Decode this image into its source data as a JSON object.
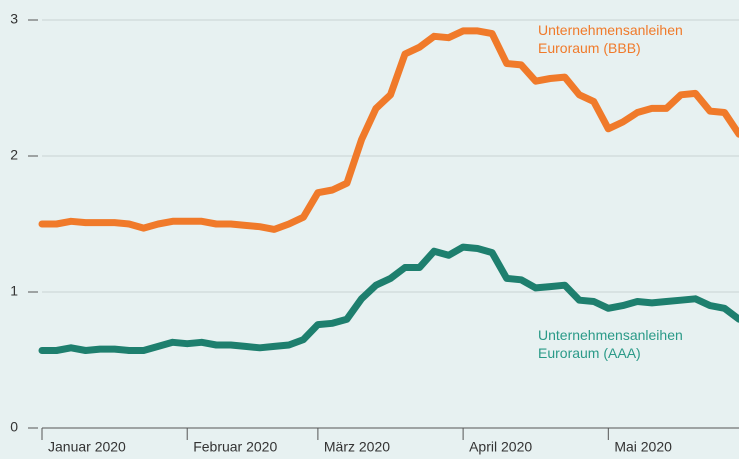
{
  "chart_data": {
    "type": "line",
    "categories": [
      "Januar 2020",
      null,
      null,
      null,
      null,
      null,
      null,
      null,
      null,
      null,
      "Februar 2020",
      null,
      null,
      null,
      null,
      null,
      null,
      null,
      null,
      "März 2020",
      null,
      null,
      null,
      null,
      null,
      null,
      null,
      null,
      null,
      "April 2020",
      null,
      null,
      null,
      null,
      null,
      null,
      null,
      null,
      null,
      "Mai 2020",
      null,
      null,
      null,
      null,
      null,
      null,
      null,
      null,
      null
    ],
    "series": [
      {
        "name": "Unternehmensanleihen Euroraum (BBB)",
        "color": "#f07a2a",
        "values": [
          1.5,
          1.5,
          1.52,
          1.51,
          1.51,
          1.51,
          1.5,
          1.47,
          1.5,
          1.52,
          1.52,
          1.52,
          1.5,
          1.5,
          1.49,
          1.48,
          1.46,
          1.5,
          1.55,
          1.73,
          1.75,
          1.8,
          2.12,
          2.35,
          2.45,
          2.75,
          2.8,
          2.88,
          2.87,
          2.92,
          2.92,
          2.9,
          2.68,
          2.67,
          2.55,
          2.57,
          2.58,
          2.45,
          2.4,
          2.2,
          2.25,
          2.32,
          2.35,
          2.35,
          2.45,
          2.46,
          2.33,
          2.32,
          2.16
        ]
      },
      {
        "name": "Unternehmensanleihen Euroraum (AAA)",
        "color": "#1e7f6e",
        "values": [
          0.57,
          0.57,
          0.59,
          0.57,
          0.58,
          0.58,
          0.57,
          0.57,
          0.6,
          0.63,
          0.62,
          0.63,
          0.61,
          0.61,
          0.6,
          0.59,
          0.6,
          0.61,
          0.65,
          0.76,
          0.77,
          0.8,
          0.95,
          1.05,
          1.1,
          1.18,
          1.18,
          1.3,
          1.27,
          1.33,
          1.32,
          1.29,
          1.1,
          1.09,
          1.03,
          1.04,
          1.05,
          0.94,
          0.93,
          0.88,
          0.9,
          0.93,
          0.92,
          0.93,
          0.94,
          0.95,
          0.9,
          0.88,
          0.8
        ]
      }
    ],
    "ylim": [
      0,
      3
    ],
    "yticks": [
      0,
      1,
      2,
      3
    ],
    "grid": true
  }
}
